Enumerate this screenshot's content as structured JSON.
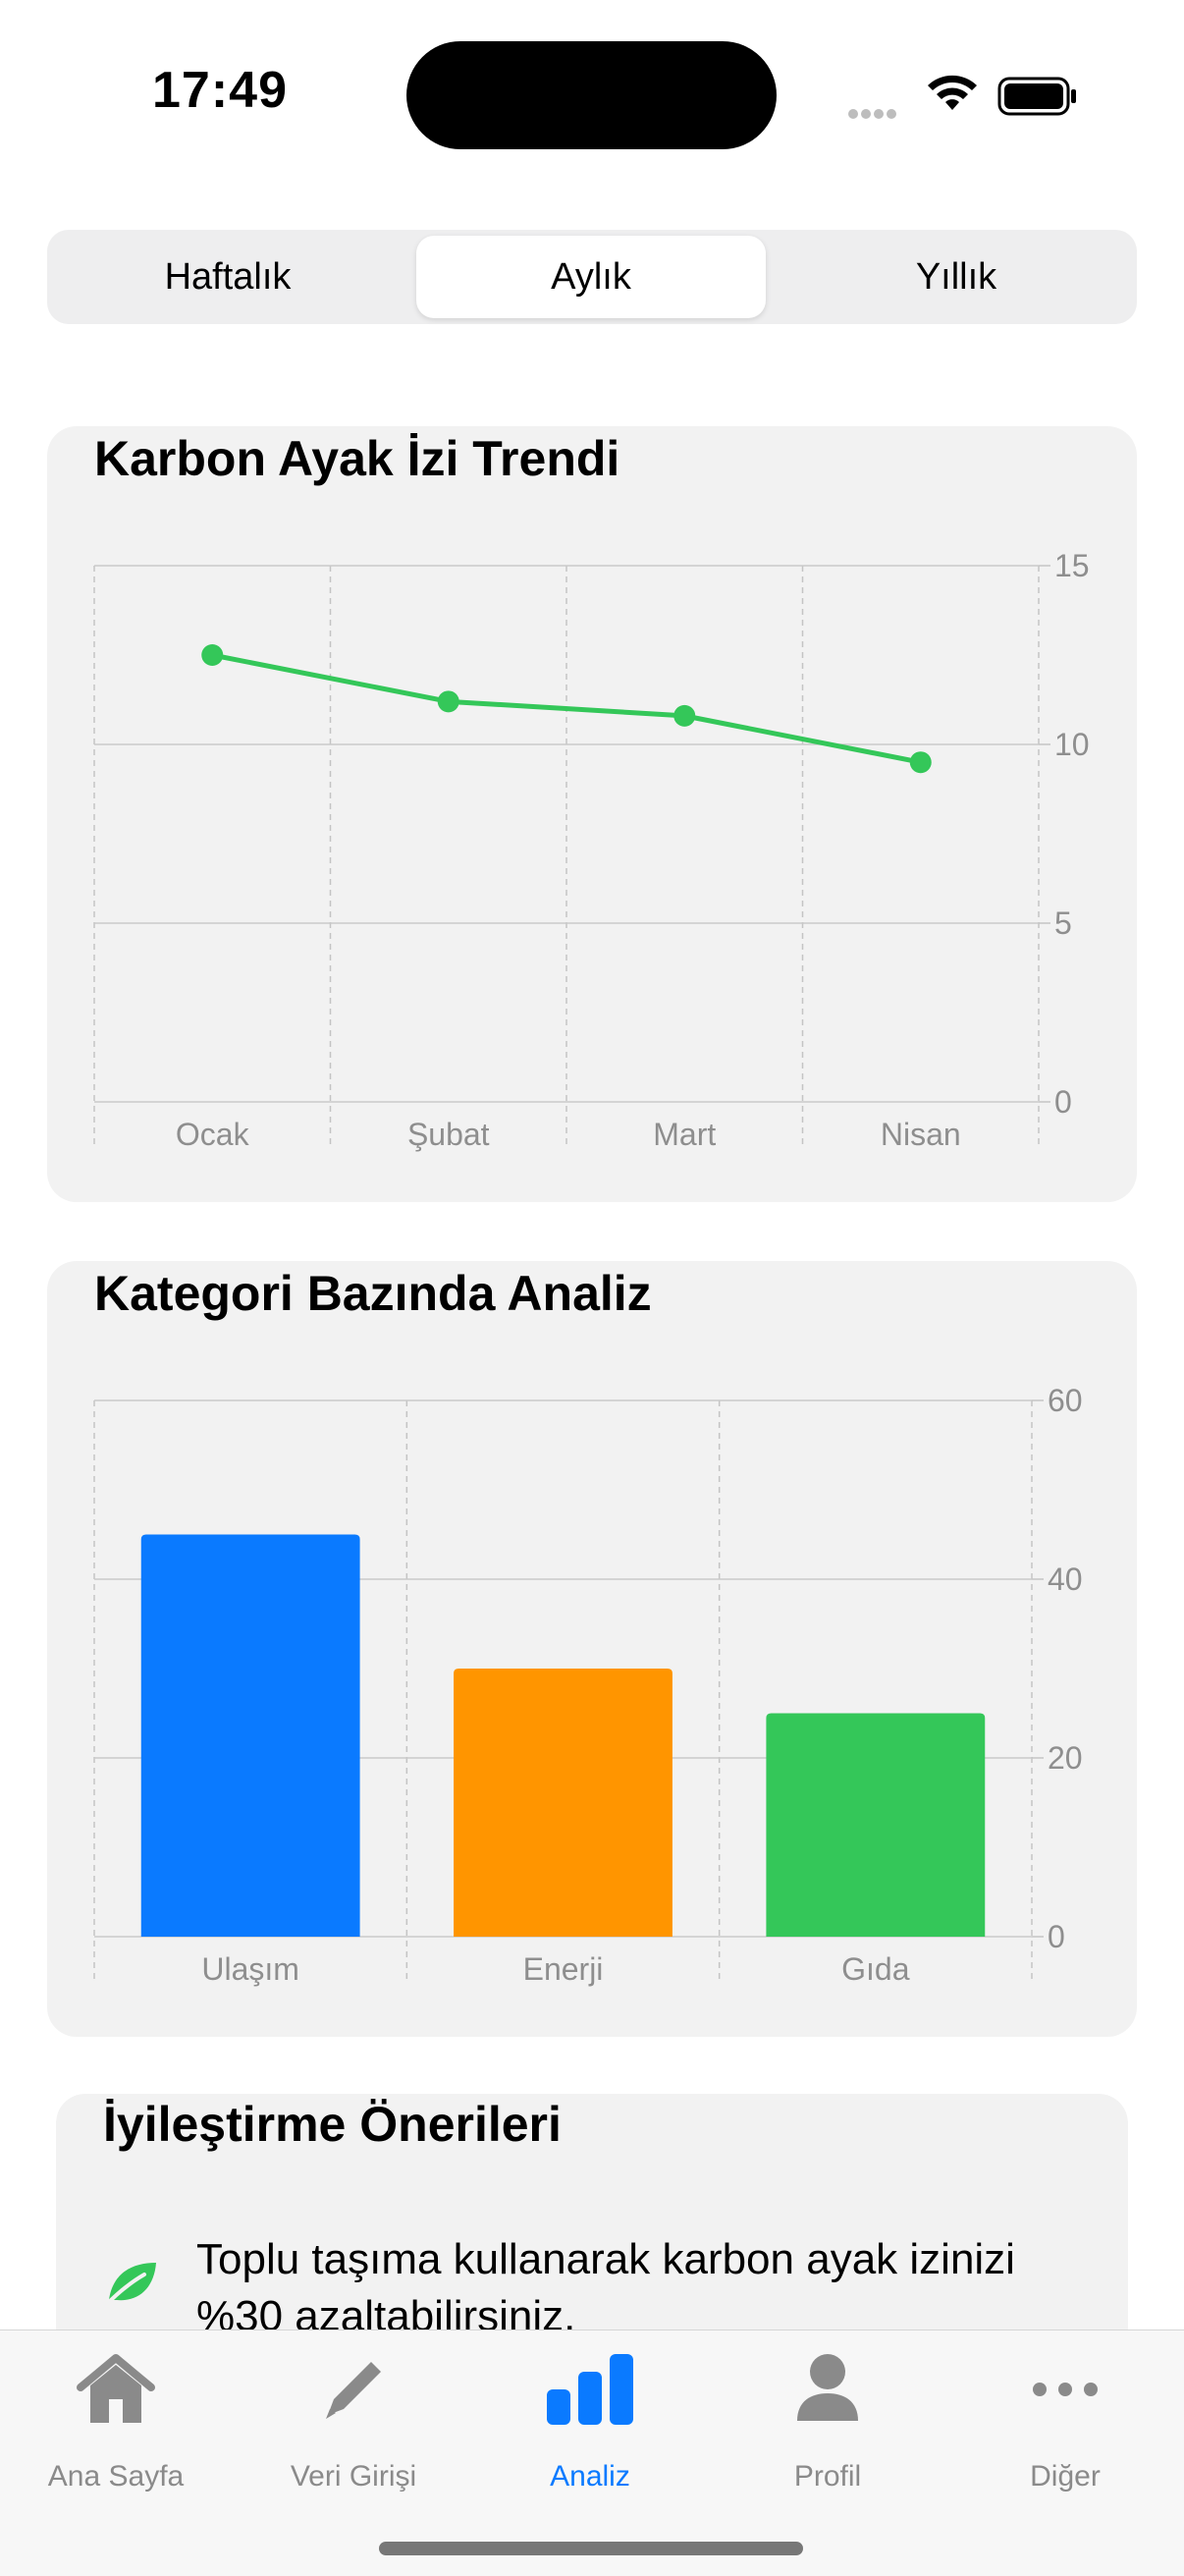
{
  "status_bar": {
    "time": "17:49"
  },
  "segmented": {
    "items": [
      "Haftalık",
      "Aylık",
      "Yıllık"
    ],
    "selected": "Aylık"
  },
  "trend_card": {
    "title": "Karbon Ayak İzi Trendi"
  },
  "category_card": {
    "title": "Kategori Bazında Analiz"
  },
  "suggestions": {
    "title": "İyileştirme Önerileri",
    "items": [
      {
        "icon": "leaf-icon",
        "text": "Toplu taşıma kullanarak karbon ayak izinizi %30 azaltabilirsiniz."
      }
    ]
  },
  "tabbar": {
    "items": [
      {
        "label": "Ana Sayfa",
        "icon": "house-icon"
      },
      {
        "label": "Veri Girişi",
        "icon": "pencil-icon"
      },
      {
        "label": "Analiz",
        "icon": "chart-bar-icon"
      },
      {
        "label": "Profil",
        "icon": "person-icon"
      },
      {
        "label": "Diğer",
        "icon": "more-icon"
      }
    ],
    "active": "Analiz"
  },
  "colors": {
    "accent": "#0a7aff",
    "line": "#34c759",
    "bar_ulasim": "#0a7aff",
    "bar_enerji": "#ff9500",
    "bar_gida": "#34c759"
  },
  "chart_data": [
    {
      "type": "line",
      "title": "Karbon Ayak İzi Trendi",
      "categories": [
        "Ocak",
        "Şubat",
        "Mart",
        "Nisan"
      ],
      "values": [
        12.5,
        11.2,
        10.8,
        9.5
      ],
      "ylim": [
        0,
        15
      ],
      "yticks": [
        0,
        5,
        10,
        15
      ],
      "grid": true,
      "y_axis_side": "right"
    },
    {
      "type": "bar",
      "title": "Kategori Bazında Analiz",
      "categories": [
        "Ulaşım",
        "Enerji",
        "Gıda"
      ],
      "values": [
        45,
        30,
        25
      ],
      "ylim": [
        0,
        60
      ],
      "yticks": [
        0,
        20,
        40,
        60
      ],
      "grid": true,
      "y_axis_side": "right"
    }
  ]
}
